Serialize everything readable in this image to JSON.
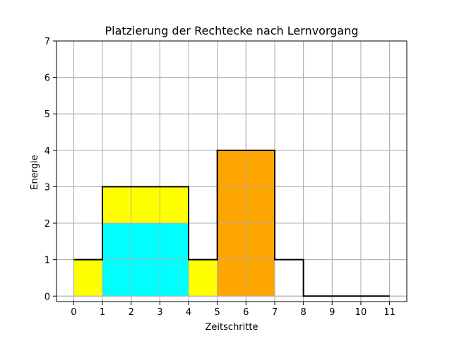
{
  "chart_data": {
    "type": "bar",
    "title": "Platzierung der Rechtecke nach Lernvorgang",
    "xlabel": "Zeitschritte",
    "ylabel": "Energie",
    "xlim": [
      -0.6,
      11.6
    ],
    "ylim": [
      -0.15,
      7
    ],
    "xticks": [
      0,
      1,
      2,
      3,
      4,
      5,
      6,
      7,
      8,
      9,
      10,
      11
    ],
    "yticks": [
      0,
      1,
      2,
      3,
      4,
      5,
      6,
      7
    ],
    "grid": true,
    "rectangles": [
      {
        "x0": 0,
        "x1": 1,
        "y0": 0,
        "y1": 1,
        "color": "#ffff00"
      },
      {
        "x0": 1,
        "x1": 4,
        "y0": 0,
        "y1": 2,
        "color": "#00ffff"
      },
      {
        "x0": 1,
        "x1": 4,
        "y0": 2,
        "y1": 3,
        "color": "#ffff00"
      },
      {
        "x0": 4,
        "x1": 5,
        "y0": 0,
        "y1": 1,
        "color": "#ffff00"
      },
      {
        "x0": 5,
        "x1": 7,
        "y0": 0,
        "y1": 4,
        "color": "#ffa500"
      }
    ],
    "outline_step": {
      "x": [
        0,
        1,
        1,
        4,
        4,
        5,
        5,
        7,
        7,
        8,
        8,
        11
      ],
      "y": [
        1,
        1,
        3,
        3,
        1,
        1,
        4,
        4,
        1,
        1,
        0,
        0
      ],
      "color": "#000000"
    }
  }
}
